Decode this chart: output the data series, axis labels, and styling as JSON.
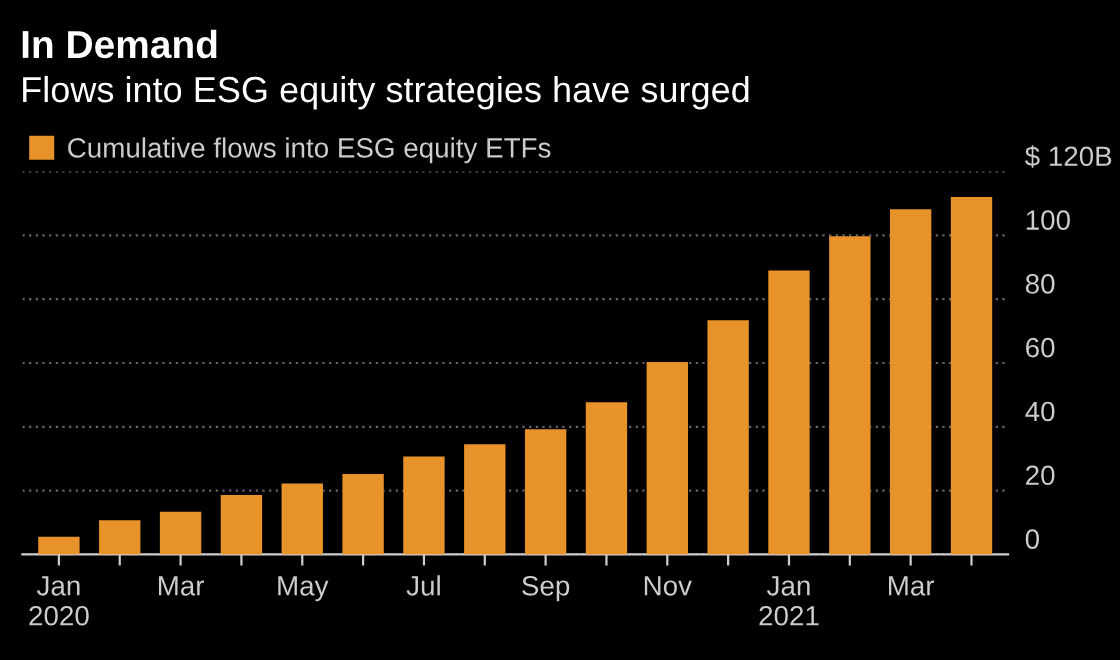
{
  "chart_data": {
    "type": "bar",
    "title": "In Demand",
    "subtitle": "Flows into ESG equity strategies have surged",
    "categories": [
      "Jan\n2020",
      null,
      "Mar",
      null,
      "May",
      null,
      "Jul",
      null,
      "Sep",
      null,
      "Nov",
      null,
      "Jan\n2021",
      null,
      "Mar",
      null
    ],
    "series": [
      {
        "name": "Cumulative flows into ESG equity ETFs",
        "color": "#e8922a",
        "values": [
          5.5,
          10.7,
          13.4,
          18.6,
          22.2,
          25.2,
          30.7,
          34.5,
          39.2,
          47.7,
          60.3,
          73.4,
          89,
          99.7,
          108.2,
          112
        ]
      }
    ],
    "ylim": [
      0,
      120
    ],
    "yticks": [
      0,
      20,
      40,
      60,
      80,
      100,
      {
        "value": 120,
        "label": "$ 120B"
      }
    ],
    "grid": "y",
    "legend": "top left"
  }
}
